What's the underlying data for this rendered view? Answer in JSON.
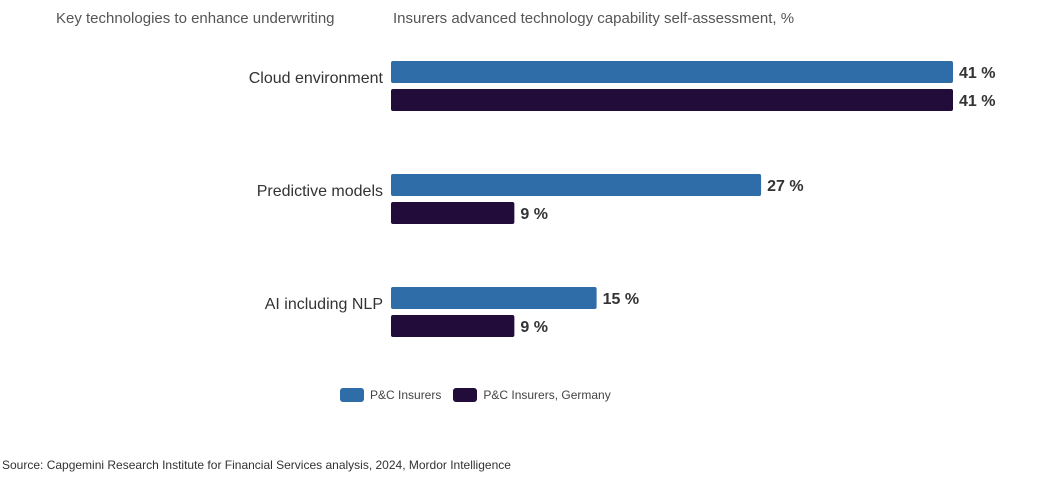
{
  "headings": {
    "left": "Key technologies to enhance underwriting",
    "right": "Insurers advanced technology capability self-assessment, %"
  },
  "chart_data": {
    "type": "bar",
    "orientation": "horizontal",
    "categories": [
      "Cloud environment",
      "Predictive models",
      "AI including NLP"
    ],
    "series": [
      {
        "name": "P&C Insurers",
        "values": [
          41,
          27,
          15
        ],
        "color": "#2f6da8"
      },
      {
        "name": "P&C Insurers, Germany",
        "values": [
          41,
          9,
          9
        ],
        "color": "#220d3a"
      }
    ],
    "value_suffix": " %",
    "xlim": [
      0,
      41
    ],
    "grid": false,
    "legend_position": "bottom"
  },
  "source": "Source: Capgemini Research Institute for Financial Services analysis, 2024, Mordor Intelligence"
}
